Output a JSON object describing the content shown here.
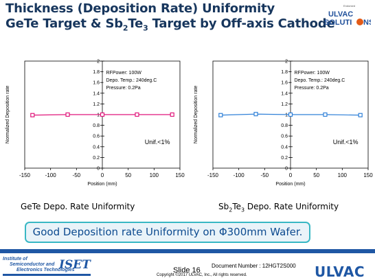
{
  "slide": {
    "title_line1": "Thickness (Deposition Rate) Uniformity",
    "title_line2_a": "GeTe Target & Sb",
    "title_line2_sub1": "2",
    "title_line2_b": "Te",
    "title_line2_sub2": "3",
    "title_line2_c": " Target by Off-axis Cathode",
    "caption_left": "GeTe Depo. Rate Uniformity",
    "caption_right_a": "Sb",
    "caption_right_sub1": "2",
    "caption_right_b": "Te",
    "caption_right_sub2": "3",
    "caption_right_c": " Depo. Rate Uniformity",
    "banner": "Good Deposition rate Uniformity on Φ300mm Wafer.",
    "logo_small_top": "Endorsed",
    "logo_word1": "ULVAC",
    "logo_word2": "SOLUTI",
    "logo_word3": "NS",
    "footer": {
      "iset_line1": "Institute of",
      "iset_line2": "Semiconductor and",
      "iset_line3": "Electronics Technologies",
      "iset_big": "ISET",
      "slide_label": "Slide 16",
      "doc_number": "Document Number : 12HGT2S000",
      "copyright": "Copyright ©2017  ULVAC, Inc., All rights reserved.",
      "ulvac": "ULVAC"
    }
  },
  "chart_data": [
    {
      "type": "line",
      "xlabel": "Position (mm)",
      "ylabel": "Normalized Deposition rate",
      "xlim": [
        -150,
        150
      ],
      "ylim": [
        0,
        2
      ],
      "xticks": [
        "-150",
        "-100",
        "-50",
        "0",
        "50",
        "100",
        "150"
      ],
      "yticks": [
        "0",
        "0.2",
        "0.4",
        "0.6",
        "0.8",
        "1",
        "1.2",
        "1.4",
        "1.6",
        "1.8",
        "2"
      ],
      "grid": false,
      "annotation_lines": [
        "RFPower: 100W",
        "Depo. Temp.: 240deg.C",
        "Pressure: 0.2Pa"
      ],
      "note": "Unif.<1%",
      "series": [
        {
          "color": "#e0157a",
          "marker": "square",
          "x": [
            -135,
            -67,
            0,
            67,
            135
          ],
          "y": [
            0.99,
            1.0,
            1.0,
            1.0,
            1.0
          ]
        }
      ]
    },
    {
      "type": "line",
      "xlabel": "Position (mm)",
      "ylabel": "Normalized Deposition rate",
      "xlim": [
        -150,
        150
      ],
      "ylim": [
        0,
        2
      ],
      "xticks": [
        "-150",
        "-100",
        "-50",
        "0",
        "50",
        "100",
        "150"
      ],
      "yticks": [
        "0",
        "0.2",
        "0.4",
        "0.6",
        "0.8",
        "1",
        "1.2",
        "1.4",
        "1.6",
        "1.8",
        "2"
      ],
      "grid": false,
      "annotation_lines": [
        "RFPower: 100W",
        "Depo. Temp.: 240deg.C",
        "Pressure: 0.2Pa"
      ],
      "note": "Unif.<1%",
      "series": [
        {
          "color": "#2f80d8",
          "marker": "square",
          "x": [
            -135,
            -67,
            0,
            67,
            135
          ],
          "y": [
            0.99,
            1.01,
            1.0,
            1.0,
            0.99
          ]
        }
      ]
    }
  ]
}
